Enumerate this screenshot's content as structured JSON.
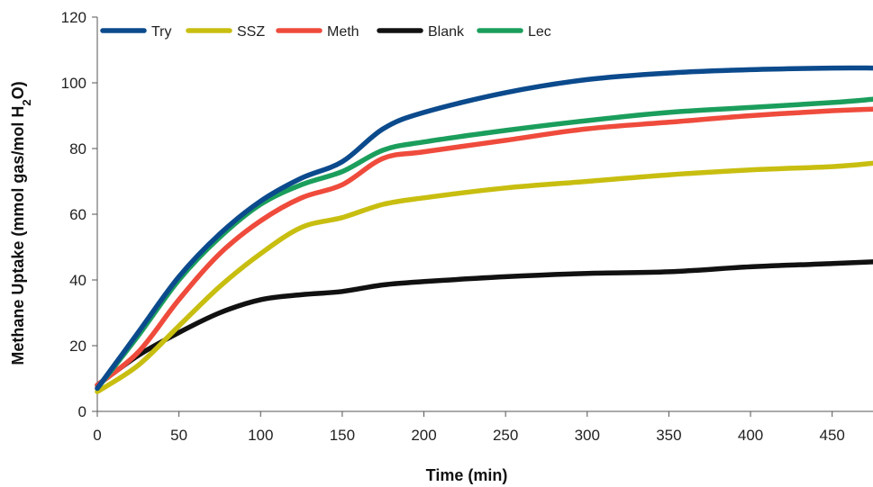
{
  "chart_data": {
    "type": "line",
    "title": "",
    "xlabel": "Time (min)",
    "ylabel_parts": [
      "Methane Uptake (mmol gas/mol H",
      "2",
      "O)"
    ],
    "xlim": [
      0,
      475
    ],
    "ylim": [
      0,
      120
    ],
    "xticks": [
      0,
      50,
      100,
      150,
      200,
      250,
      300,
      350,
      400,
      450
    ],
    "yticks": [
      0,
      20,
      40,
      60,
      80,
      100,
      120
    ],
    "grid": false,
    "legend_position": "top-left",
    "series": [
      {
        "name": "Try",
        "color": "#0b4a8c",
        "x": [
          0,
          25,
          50,
          75,
          100,
          125,
          150,
          175,
          200,
          250,
          300,
          350,
          400,
          450,
          475
        ],
        "y": [
          7,
          24,
          41,
          54,
          64,
          71,
          76,
          86,
          91,
          97,
          101,
          103,
          104,
          104.5,
          104.5
        ]
      },
      {
        "name": "SSZ",
        "color": "#c8be10",
        "x": [
          0,
          25,
          50,
          75,
          100,
          125,
          150,
          175,
          200,
          250,
          300,
          350,
          400,
          450,
          475
        ],
        "y": [
          6,
          14,
          26,
          38,
          48,
          56,
          59,
          63,
          65,
          68,
          70,
          72,
          73.5,
          74.5,
          75.5
        ]
      },
      {
        "name": "Meth",
        "color": "#ef4b3c",
        "x": [
          0,
          25,
          50,
          75,
          100,
          125,
          150,
          175,
          200,
          250,
          300,
          350,
          400,
          450,
          475
        ],
        "y": [
          8,
          18,
          34,
          48,
          58,
          65,
          69,
          77,
          79,
          82.5,
          86,
          88,
          90,
          91.5,
          92
        ]
      },
      {
        "name": "Blank",
        "color": "#111111",
        "x": [
          0,
          25,
          50,
          75,
          100,
          125,
          150,
          175,
          200,
          250,
          300,
          350,
          400,
          450,
          475
        ],
        "y": [
          8,
          17,
          24,
          30,
          34,
          35.5,
          36.5,
          38.5,
          39.5,
          41,
          42,
          42.5,
          44,
          45,
          45.5
        ]
      },
      {
        "name": "Lec",
        "color": "#1b9e5c",
        "x": [
          0,
          25,
          50,
          75,
          100,
          125,
          150,
          175,
          200,
          250,
          300,
          350,
          400,
          450,
          475
        ],
        "y": [
          7,
          23,
          40,
          53,
          63,
          69,
          73,
          79.5,
          82,
          85.5,
          88.5,
          91,
          92.5,
          94,
          95
        ]
      }
    ]
  }
}
